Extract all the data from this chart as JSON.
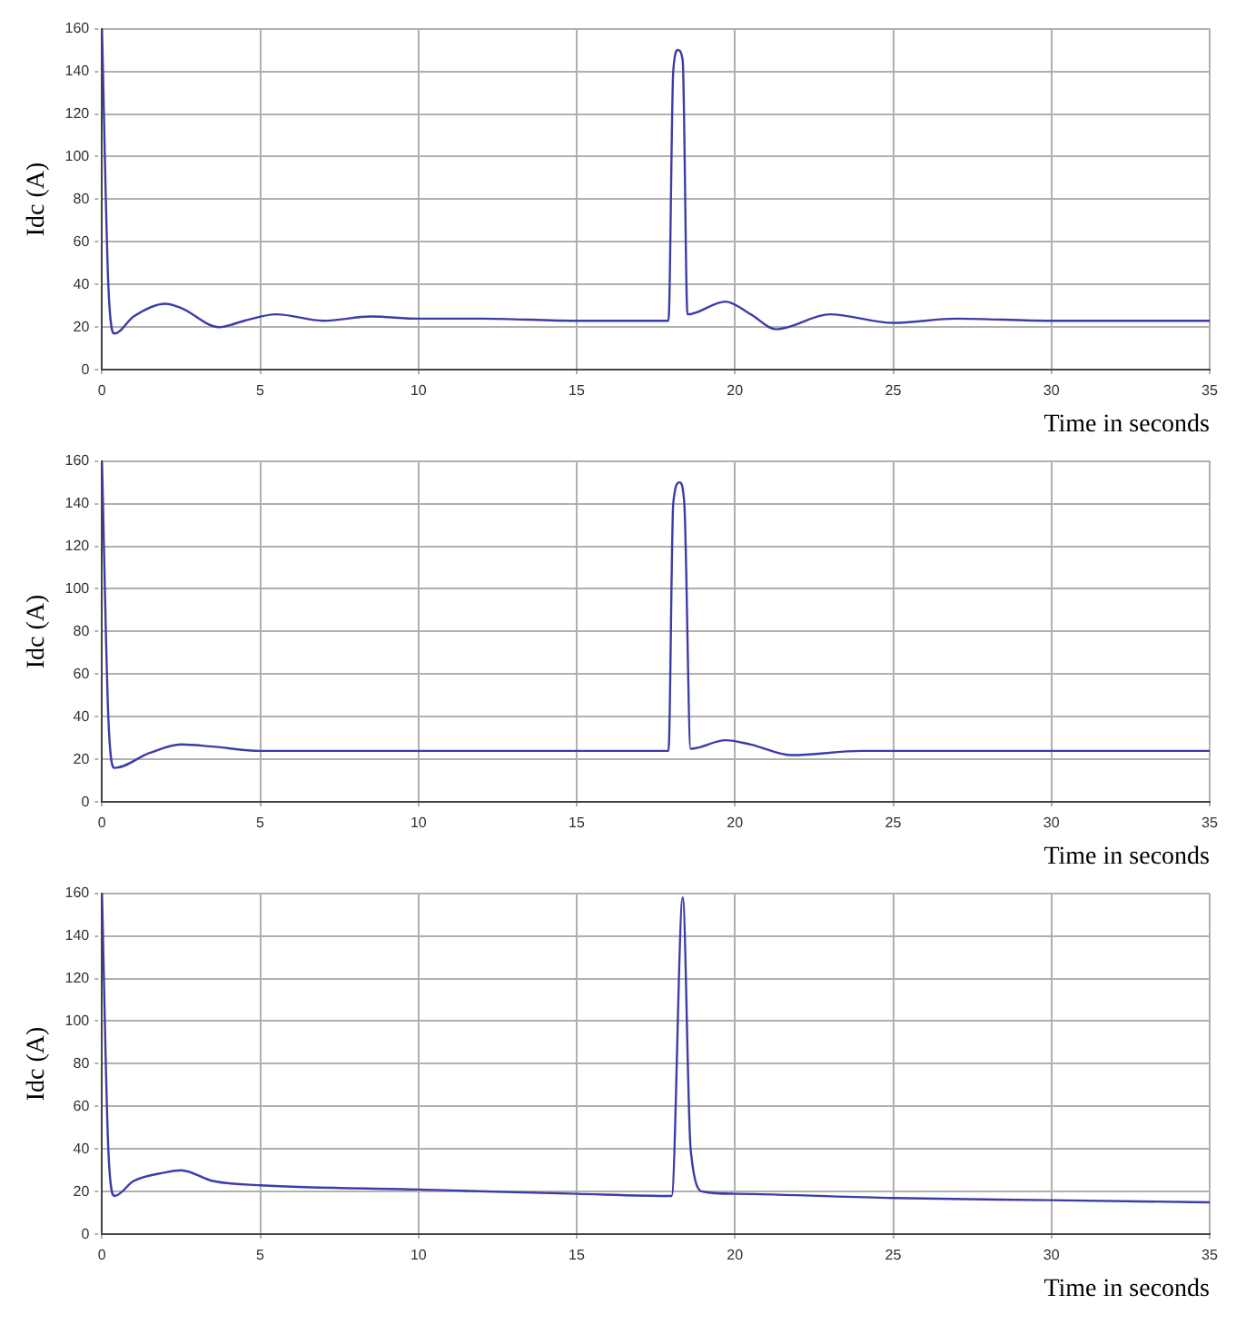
{
  "chart_data": [
    {
      "type": "line",
      "xlabel": "Time in seconds",
      "ylabel": "Idc (A)",
      "xlim": [
        0,
        35
      ],
      "xticks": [
        0,
        5,
        10,
        15,
        20,
        25,
        30,
        35
      ],
      "ylim": [
        0,
        160
      ],
      "yticks": [
        0,
        20,
        40,
        60,
        80,
        100,
        120,
        140,
        160
      ],
      "grid": true,
      "marker": "none",
      "line_style": "solid",
      "series": [
        {
          "color": "#3c3ca8",
          "x": [
            0,
            0.2,
            0.4,
            1,
            2,
            2.5,
            3.7,
            4.5,
            5.5,
            7,
            8.5,
            10,
            12,
            15,
            17.9,
            18.05,
            18.2,
            18.35,
            18.5,
            19.7,
            20.5,
            21.3,
            23,
            25,
            27,
            30,
            35
          ],
          "values": [
            160,
            40,
            17,
            25,
            31,
            29,
            20,
            23,
            26,
            23,
            25,
            24,
            24,
            23,
            23,
            140,
            150,
            145,
            26,
            32,
            26,
            19,
            26,
            22,
            24,
            23,
            23
          ]
        }
      ]
    },
    {
      "type": "line",
      "xlabel": "Time in seconds",
      "ylabel": "Idc (A)",
      "xlim": [
        0,
        35
      ],
      "xticks": [
        0,
        5,
        10,
        15,
        20,
        25,
        30,
        35
      ],
      "ylim": [
        0,
        160
      ],
      "yticks": [
        0,
        20,
        40,
        60,
        80,
        100,
        120,
        140,
        160
      ],
      "grid": true,
      "marker": "none",
      "line_style": "solid",
      "series": [
        {
          "color": "#3c3ca8",
          "x": [
            0,
            0.2,
            0.4,
            1.5,
            2.5,
            3.5,
            5,
            10,
            15,
            17.9,
            18.05,
            18.25,
            18.4,
            18.6,
            19.7,
            20.5,
            21.8,
            24,
            25,
            35
          ],
          "values": [
            160,
            40,
            16,
            23,
            27,
            26,
            24,
            24,
            24,
            24,
            140,
            150,
            140,
            25,
            29,
            27,
            22,
            24,
            24,
            24
          ]
        }
      ]
    },
    {
      "type": "line",
      "xlabel": "Time in seconds",
      "ylabel": "Idc (A)",
      "xlim": [
        0,
        35
      ],
      "xticks": [
        0,
        5,
        10,
        15,
        20,
        25,
        30,
        35
      ],
      "ylim": [
        0,
        160
      ],
      "yticks": [
        0,
        20,
        40,
        60,
        80,
        100,
        120,
        140,
        160
      ],
      "grid": true,
      "marker": "none",
      "line_style": "solid",
      "series": [
        {
          "color": "#3c3ca8",
          "x": [
            0,
            0.2,
            0.4,
            1,
            2,
            2.5,
            3.5,
            5,
            10,
            15,
            18,
            18.35,
            18.6,
            19,
            20,
            25,
            30,
            35
          ],
          "values": [
            160,
            40,
            18,
            25,
            29,
            30,
            25,
            23,
            21,
            19,
            18,
            158,
            40,
            20,
            19,
            17,
            16,
            15
          ]
        }
      ]
    }
  ]
}
